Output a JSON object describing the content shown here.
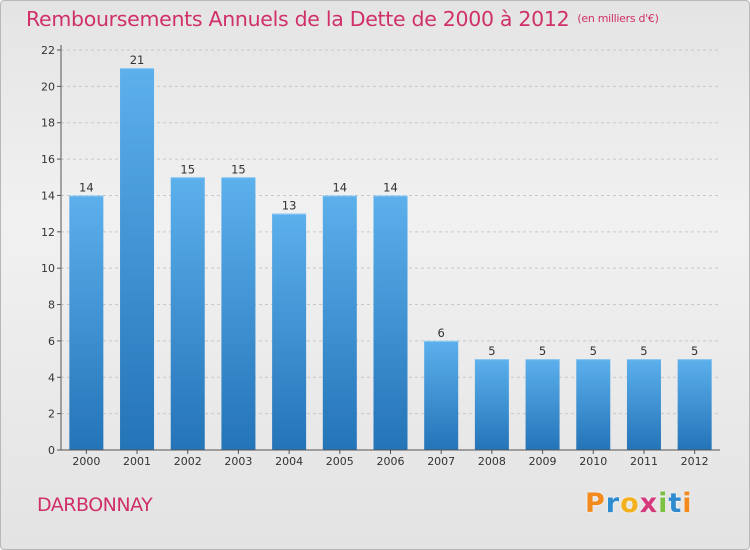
{
  "chart_data": {
    "type": "bar",
    "title": "Remboursements Annuels de la Dette de 2000 à 2012",
    "subtitle": "(en milliers d'€)",
    "categories": [
      "2000",
      "2001",
      "2002",
      "2003",
      "2004",
      "2005",
      "2006",
      "2007",
      "2008",
      "2009",
      "2010",
      "2011",
      "2012"
    ],
    "values": [
      14,
      21,
      15,
      15,
      13,
      14,
      14,
      6,
      5,
      5,
      5,
      5,
      5
    ],
    "ylim": [
      0,
      22
    ],
    "yticks": [
      0,
      2,
      4,
      6,
      8,
      10,
      12,
      14,
      16,
      18,
      20,
      22
    ],
    "grid": true,
    "bar_color": "#3a8fd6"
  },
  "footer": {
    "commune": "DARBONNAY",
    "brand_letters": [
      "P",
      "r",
      "o",
      "x",
      "i",
      "t",
      "i"
    ],
    "brand_colors": [
      "#f28a1e",
      "#2e8bd0",
      "#f2b21e",
      "#d43a7c",
      "#7cc142",
      "#2e8bd0",
      "#f28a1e"
    ]
  }
}
